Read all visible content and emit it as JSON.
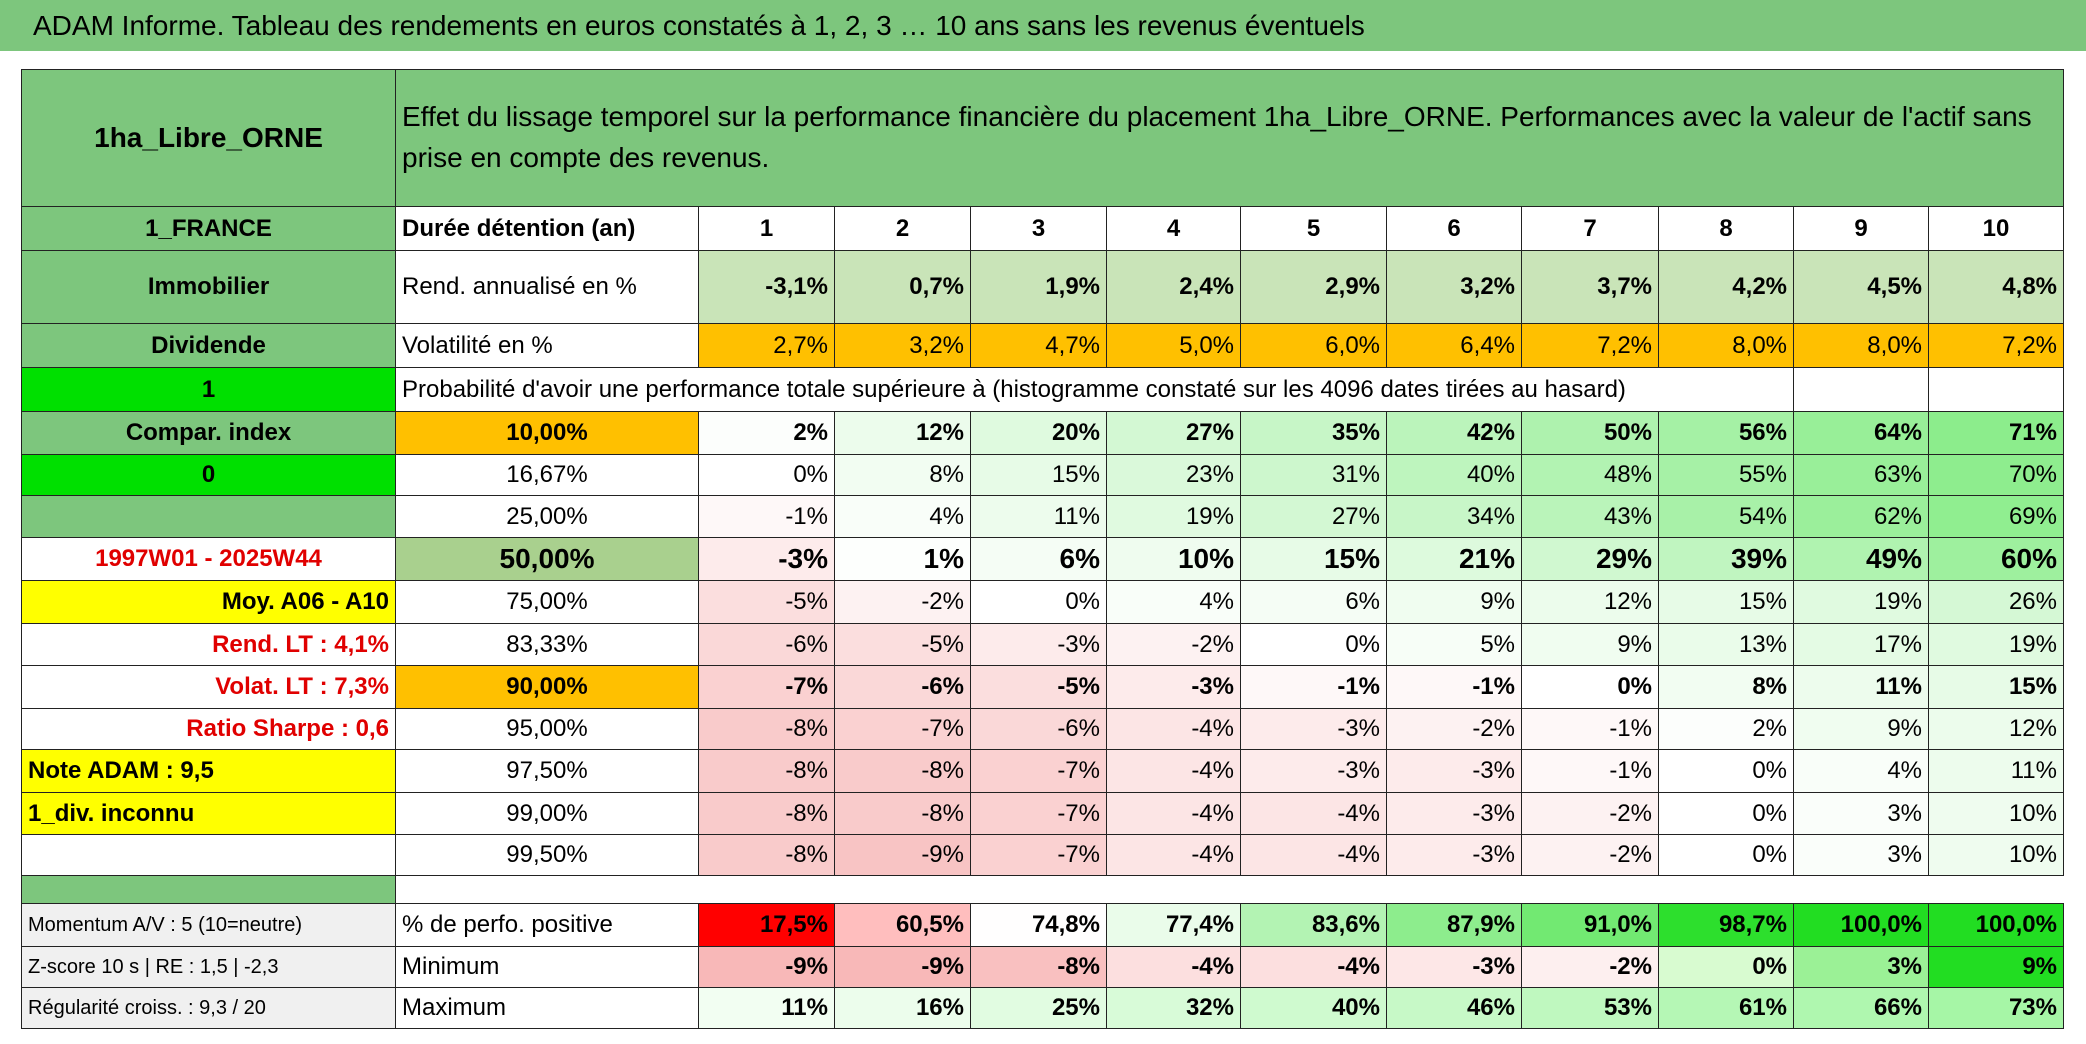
{
  "header": {
    "title": "ADAM Informe. Tableau des rendements en euros constatés à 1, 2, 3 … 10 ans sans les revenus éventuels"
  },
  "table": {
    "asset": "1ha_Libre_ORNE",
    "description": "Effet du lissage temporel sur la performance financière du placement 1ha_Libre_ORNE. Performances avec la valeur de l'actif sans prise en compte des revenus.",
    "rows": [
      {
        "side": "1_FRANCE",
        "label": "Durée détention (an)",
        "cells": [
          "1",
          "2",
          "3",
          "4",
          "5",
          "6",
          "7",
          "8",
          "9",
          "10"
        ]
      },
      {
        "side": "Immobilier",
        "label": "Rend. annualisé en %",
        "cells": [
          "-3,1%",
          "0,7%",
          "1,9%",
          "2,4%",
          "2,9%",
          "3,2%",
          "3,7%",
          "4,2%",
          "4,5%",
          "4,8%"
        ]
      },
      {
        "side": "Dividende",
        "label": "Volatilité en %",
        "cells": [
          "2,7%",
          "3,2%",
          "4,7%",
          "5,0%",
          "6,0%",
          "6,4%",
          "7,2%",
          "8,0%",
          "8,0%",
          "7,2%"
        ]
      },
      {
        "side": "1",
        "label": "Probabilité d'avoir une performance totale supérieure à (histogramme constaté sur les 4096 dates tirées au hasard)"
      },
      {
        "side": "Compar. index",
        "label": "10,00%",
        "cells": [
          "2%",
          "12%",
          "20%",
          "27%",
          "35%",
          "42%",
          "50%",
          "56%",
          "64%",
          "71%"
        ]
      },
      {
        "side": "0",
        "label": "16,67%",
        "cells": [
          "0%",
          "8%",
          "15%",
          "23%",
          "31%",
          "40%",
          "48%",
          "55%",
          "63%",
          "70%"
        ]
      },
      {
        "label": "25,00%",
        "cells": [
          "-1%",
          "4%",
          "11%",
          "19%",
          "27%",
          "34%",
          "43%",
          "54%",
          "62%",
          "69%"
        ]
      },
      {
        "side": "1997W01 - 2025W44",
        "label": "50,00%",
        "cells": [
          "-3%",
          "1%",
          "6%",
          "10%",
          "15%",
          "21%",
          "29%",
          "39%",
          "49%",
          "60%"
        ]
      },
      {
        "side": "Moy. A06 - A10",
        "label": "75,00%",
        "cells": [
          "-5%",
          "-2%",
          "0%",
          "4%",
          "6%",
          "9%",
          "12%",
          "15%",
          "19%",
          "26%"
        ]
      },
      {
        "side": "Rend. LT :   4,1%",
        "label": "83,33%",
        "cells": [
          "-6%",
          "-5%",
          "-3%",
          "-2%",
          "0%",
          "5%",
          "9%",
          "13%",
          "17%",
          "19%"
        ]
      },
      {
        "side": "Volat. LT :   7,3%",
        "label": "90,00%",
        "cells": [
          "-7%",
          "-6%",
          "-5%",
          "-3%",
          "-1%",
          "-1%",
          "0%",
          "8%",
          "11%",
          "15%"
        ]
      },
      {
        "side": "Ratio Sharpe :    0,6",
        "label": "95,00%",
        "cells": [
          "-8%",
          "-7%",
          "-6%",
          "-4%",
          "-3%",
          "-2%",
          "-1%",
          "2%",
          "9%",
          "12%"
        ]
      },
      {
        "side": "Note ADAM : 9,5",
        "label": "97,50%",
        "cells": [
          "-8%",
          "-8%",
          "-7%",
          "-4%",
          "-3%",
          "-3%",
          "-1%",
          "0%",
          "4%",
          "11%"
        ]
      },
      {
        "side": "1_div. inconnu",
        "label": "99,00%",
        "cells": [
          "-8%",
          "-8%",
          "-7%",
          "-4%",
          "-4%",
          "-3%",
          "-2%",
          "0%",
          "3%",
          "10%"
        ]
      },
      {
        "label": "99,50%",
        "cells": [
          "-8%",
          "-9%",
          "-7%",
          "-4%",
          "-4%",
          "-3%",
          "-2%",
          "0%",
          "3%",
          "10%"
        ]
      },
      {
        "side": "Momentum A/V : 5 (10=neutre)",
        "label": "% de perfo. positive",
        "cells": [
          "17,5%",
          "60,5%",
          "74,8%",
          "77,4%",
          "83,6%",
          "87,9%",
          "91,0%",
          "98,7%",
          "100,0%",
          "100,0%"
        ]
      },
      {
        "side": "Z-score 10 s | RE : 1,5 | -2,3",
        "label": "Minimum",
        "cells": [
          "-9%",
          "-9%",
          "-8%",
          "-4%",
          "-4%",
          "-3%",
          "-2%",
          "0%",
          "3%",
          "9%"
        ]
      },
      {
        "side": "Régularité croiss. : 9,3 / 20",
        "label": "Maximum",
        "cells": [
          "11%",
          "16%",
          "25%",
          "32%",
          "40%",
          "46%",
          "53%",
          "61%",
          "66%",
          "73%"
        ]
      }
    ]
  }
}
